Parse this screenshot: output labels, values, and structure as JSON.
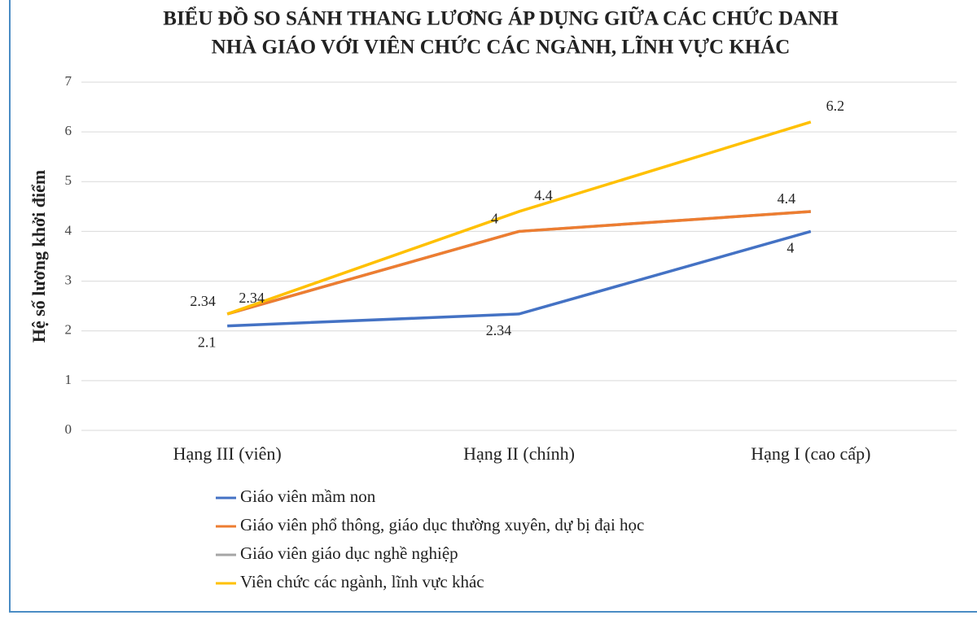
{
  "chart_data": {
    "type": "line",
    "title": [
      "BIỂU ĐỒ SO SÁNH THANG LƯƠNG ÁP DỤNG GIỮA CÁC CHỨC DANH",
      "NHÀ GIÁO VỚI VIÊN CHỨC CÁC NGÀNH, LĨNH VỰC KHÁC"
    ],
    "y_label": "Hệ số lương khởi điểm",
    "categories": [
      "Hạng III (viên)",
      "Hạng II (chính)",
      "Hạng I (cao cấp)"
    ],
    "series": [
      {
        "name": "Giáo viên mầm non",
        "color": "#4472c4",
        "values": [
          2.1,
          2.34,
          4
        ]
      },
      {
        "name": "Giáo viên phổ thông, giáo dục thường xuyên, dự bị đại học",
        "color": "#ed7d31",
        "values": [
          2.34,
          4,
          4.4
        ]
      },
      {
        "name": "Giáo viên giáo dục nghề nghiệp",
        "color": "#a5a5a5",
        "values": [
          2.34,
          4,
          4.4
        ]
      },
      {
        "name": "Viên chức các ngành, lĩnh vực khác",
        "color": "#ffc000",
        "values": [
          2.34,
          4.4,
          6.2
        ]
      }
    ],
    "show_labels": [
      true,
      true,
      false,
      true
    ],
    "ylim": [
      0,
      7
    ],
    "yticks": [
      0,
      1,
      2,
      3,
      4,
      5,
      6,
      7
    ],
    "grid": true
  }
}
